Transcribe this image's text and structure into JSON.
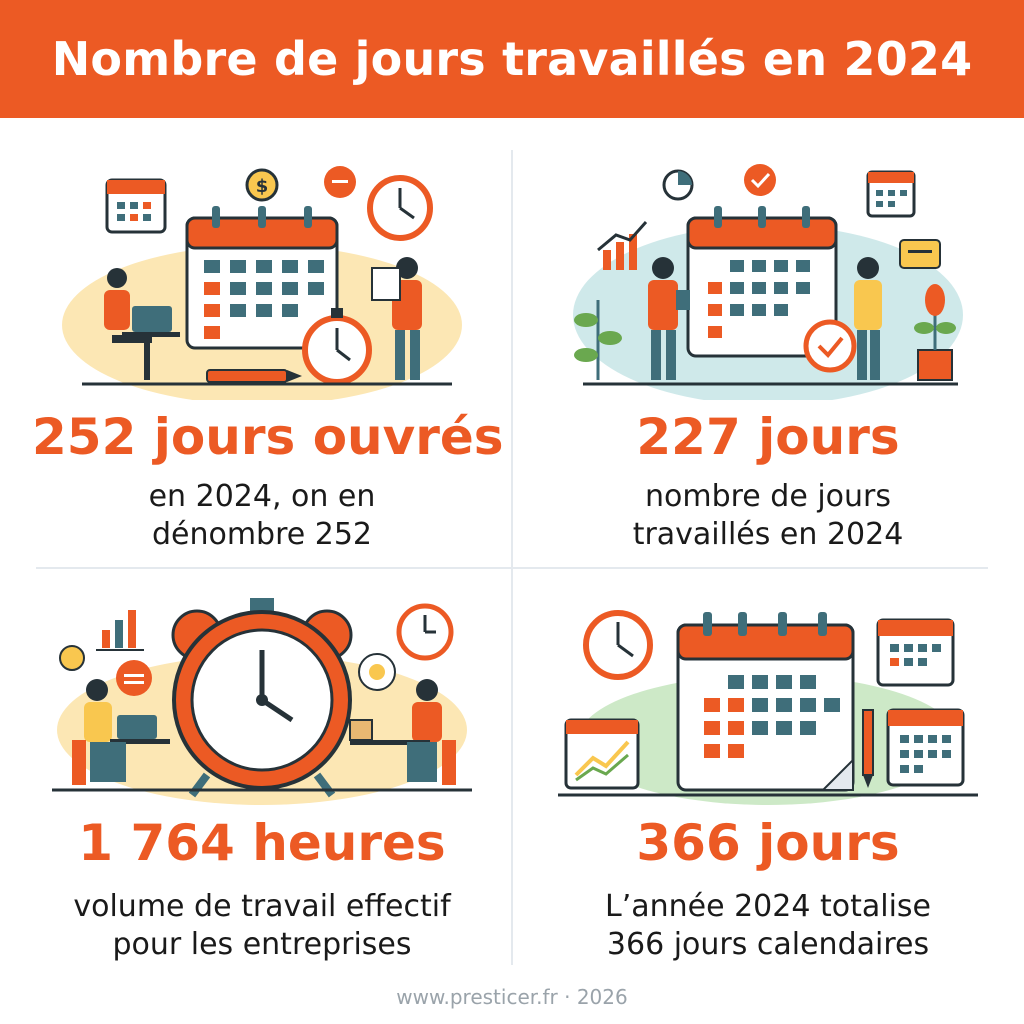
{
  "header": {
    "title": "Nombre de jours travaillés en 2024"
  },
  "stats": [
    {
      "value": "252 jours ouvrés",
      "line1": "en 2024, on en",
      "line2": "dénombre 252"
    },
    {
      "value": "227 jours",
      "line1": "nombre de jours",
      "line2": "travaillés en 2024"
    },
    {
      "value": "1 764 heures",
      "line1": "volume de travail effectif",
      "line2": "pour les entreprises"
    },
    {
      "value": "366 jours",
      "line1": "L’année 2024 totalise",
      "line2": "366 jours calendaires"
    }
  ],
  "footer": {
    "text": "www.presticer.fr · 2026"
  },
  "colors": {
    "accent": "#EC5A24",
    "teal": "#3F6E7A",
    "cream": "#FCE7B4",
    "mint": "#CFE9EA",
    "green": "#CDE9C7"
  },
  "icons": [
    "calendar-icon",
    "dollar-icon",
    "chat-icon",
    "clock-icon",
    "stopwatch-icon",
    "pencil-icon",
    "laptop-icon",
    "bar-chart-icon",
    "plant-icon",
    "check-icon",
    "alarm-clock-icon",
    "trend-chart-icon"
  ]
}
